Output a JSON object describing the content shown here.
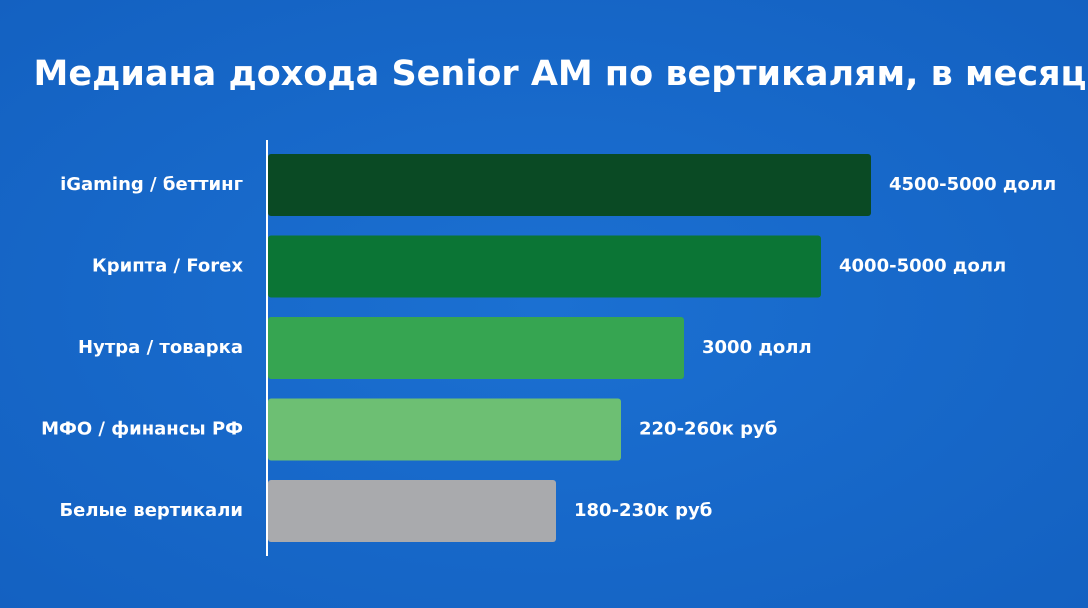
{
  "chart_data": {
    "type": "bar",
    "orientation": "horizontal",
    "title": "Медиана дохода Senior AM по вертикалям, в месяц",
    "categories": [
      "iGaming / беттинг",
      "Крипта / Forex",
      "Нутра / товарка",
      "МФО / финансы РФ",
      "Белые вертикали"
    ],
    "value_labels": [
      "4500-5000 долл",
      "4000-5000 долл",
      "3000 долл",
      "220-260к руб",
      "180-230к руб"
    ],
    "colors": [
      "#0a4a24",
      "#0b7535",
      "#36a551",
      "#6dbf73",
      "#a9aaad"
    ]
  }
}
